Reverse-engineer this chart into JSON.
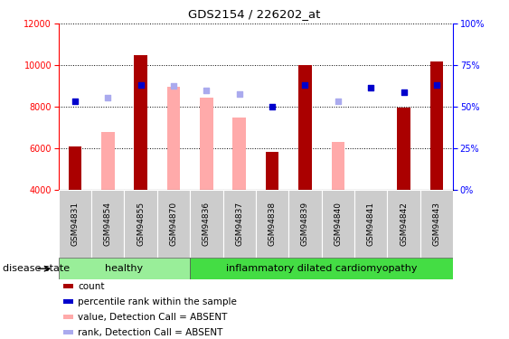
{
  "title": "GDS2154 / 226202_at",
  "samples": [
    "GSM94831",
    "GSM94854",
    "GSM94855",
    "GSM94870",
    "GSM94836",
    "GSM94837",
    "GSM94838",
    "GSM94839",
    "GSM94840",
    "GSM94841",
    "GSM94842",
    "GSM94843"
  ],
  "count_values": [
    6100,
    null,
    10500,
    null,
    null,
    null,
    5850,
    10000,
    null,
    null,
    7950,
    10200
  ],
  "count_absent_values": [
    null,
    6800,
    null,
    8950,
    8450,
    7500,
    null,
    null,
    6300,
    null,
    null,
    null
  ],
  "percentile_rank_values": [
    8250,
    null,
    9050,
    null,
    null,
    null,
    8000,
    9050,
    null,
    8900,
    8700,
    9050
  ],
  "percentile_rank_absent_values": [
    null,
    8450,
    null,
    9000,
    8800,
    8600,
    null,
    null,
    8250,
    null,
    null,
    null
  ],
  "ylim_left": [
    4000,
    12000
  ],
  "ylim_right": [
    0,
    100
  ],
  "right_ticks": [
    0,
    25,
    50,
    75,
    100
  ],
  "right_tick_labels": [
    "0%",
    "25%",
    "50%",
    "75%",
    "100%"
  ],
  "left_ticks": [
    4000,
    6000,
    8000,
    10000,
    12000
  ],
  "bar_color_present": "#aa0000",
  "bar_color_absent": "#ffaaaa",
  "dot_color_present": "#0000cc",
  "dot_color_absent": "#aaaaee",
  "healthy_n": 4,
  "disease_n": 8,
  "healthy_color": "#99ee99",
  "disease_color": "#44dd44",
  "group_label_healthy": "healthy",
  "group_label_disease": "inflammatory dilated cardiomyopathy",
  "disease_state_label": "disease state",
  "legend_items": [
    {
      "label": "count",
      "color": "#aa0000"
    },
    {
      "label": "percentile rank within the sample",
      "color": "#0000cc"
    },
    {
      "label": "value, Detection Call = ABSENT",
      "color": "#ffaaaa"
    },
    {
      "label": "rank, Detection Call = ABSENT",
      "color": "#aaaaee"
    }
  ],
  "bar_width": 0.4,
  "dot_size": 22,
  "grid_color": "black",
  "grid_lw": 0.7,
  "left_tick_color": "red",
  "right_tick_color": "blue",
  "tick_label_fontsize": 7,
  "sample_label_fontsize": 6.5,
  "title_fontsize": 9.5,
  "group_label_fontsize": 8,
  "legend_fontsize": 7.5,
  "disease_state_fontsize": 8
}
